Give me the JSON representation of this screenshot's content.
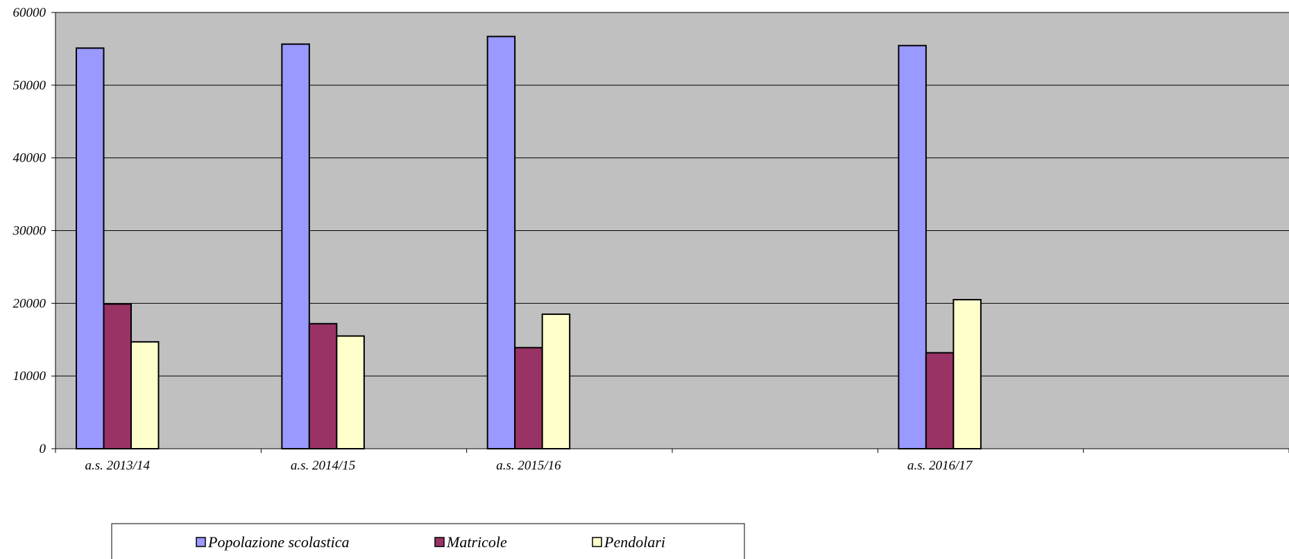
{
  "chart_data": {
    "type": "bar",
    "title": "",
    "xlabel": "",
    "ylabel": "",
    "ylim": [
      0,
      60000
    ],
    "yticks": [
      0,
      10000,
      20000,
      30000,
      40000,
      50000,
      60000
    ],
    "categories": [
      "a.s. 2013/14",
      "a.s. 2014/15",
      "a.s. 2015/16",
      "",
      "a.s. 2016/17",
      ""
    ],
    "series": [
      {
        "name": "Popolazione scolastica",
        "color": "#9999FF",
        "values": [
          55100,
          55650,
          56700,
          null,
          55450,
          null
        ]
      },
      {
        "name": "Matricole",
        "color": "#993366",
        "values": [
          19900,
          17200,
          13900,
          null,
          13200,
          null
        ]
      },
      {
        "name": "Pendolari",
        "color": "#FFFFCC",
        "values": [
          14700,
          15500,
          18500,
          null,
          20500,
          null
        ]
      }
    ],
    "grid": true,
    "plot_background": "#C0C0C0",
    "legend_position": "bottom"
  }
}
